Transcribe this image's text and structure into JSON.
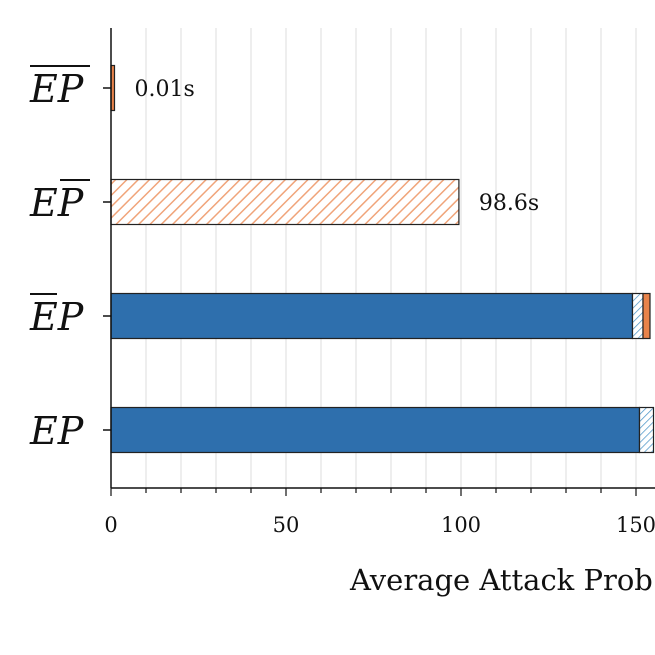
{
  "chart_data": {
    "type": "bar",
    "orientation": "horizontal",
    "stacked": true,
    "title": "",
    "xlabel": "Average Attack Prob",
    "ylabel": "",
    "xlim": [
      0,
      155
    ],
    "xticks": [
      0,
      50,
      100,
      150
    ],
    "xtick_labels": [
      "0",
      "50",
      "100",
      "150"
    ],
    "grid": "vertical",
    "categories": [
      {
        "label": "EP",
        "overbar": "both"
      },
      {
        "label": "EP",
        "overbar": "P"
      },
      {
        "label": "EP",
        "overbar": "E"
      },
      {
        "label": "EP",
        "overbar": "none"
      }
    ],
    "series": [
      {
        "color": "#2e6fad",
        "pattern": "solid",
        "values": [
          0,
          0,
          149,
          151
        ]
      },
      {
        "color": "#4e96c8",
        "pattern": "hatch",
        "values": [
          0,
          0,
          3,
          4
        ]
      },
      {
        "color": "#e8834a",
        "pattern": "solid",
        "values": [
          1,
          0,
          2,
          0
        ]
      },
      {
        "color": "#f0a47a",
        "pattern": "hatch",
        "values": [
          0,
          99.4,
          0,
          0
        ]
      }
    ],
    "data_labels": [
      "0.01s",
      "98.6s",
      "",
      ""
    ],
    "colors": {
      "dark_blue": "#2e6fad",
      "light_blue_hatch": "#4e96c8",
      "orange": "#e8834a",
      "orange_hatch": "#f0a47a",
      "grid": "#dddddd"
    }
  }
}
